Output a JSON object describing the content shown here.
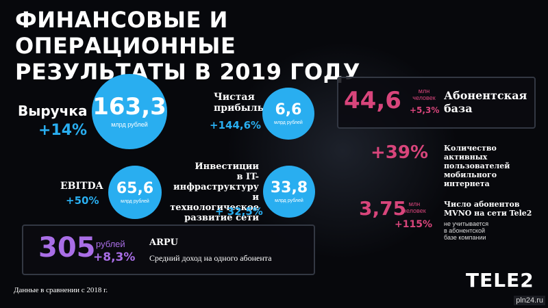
{
  "title_line1": "ФИНАНСОВЫЕ И ОПЕРАЦИОННЫЕ",
  "title_line2": "РЕЗУЛЬТАТЫ В 2019 ГОДУ",
  "revenue": {
    "label": "Выручка",
    "change": "+14%",
    "value": "163,3",
    "unit": "млрд рублей"
  },
  "net_profit": {
    "label_line1": "Чистая",
    "label_line2": "прибыль",
    "change": "+144,6%",
    "value": "6,6",
    "unit": "млрд рублей"
  },
  "ebitda": {
    "label": "EBITDA",
    "change": "+50%",
    "value": "65,6",
    "unit": "млрд рублей"
  },
  "investments": {
    "label_line1": "Инвестиции",
    "label_line2": "в IT-инфраструктуру",
    "label_line3": "и технологическое",
    "label_line4": "развитие сети",
    "change": "+ 32,5%",
    "value": "33,8",
    "unit": "млрд рублей"
  },
  "arpu": {
    "value": "305",
    "unit": "рублей",
    "change": "+8,3%",
    "label": "ARPU",
    "description": "Средний доход на одного абонента"
  },
  "subscribers": {
    "value": "44,6",
    "unit_line1": "млн",
    "unit_line2": "человек",
    "change": "+5,3%",
    "label_line1": "Абонентская",
    "label_line2": "база"
  },
  "mobile_internet": {
    "change": "+39%",
    "label_line1": "Количество",
    "label_line2": "активных",
    "label_line3": "пользователей",
    "label_line4": "мобильного",
    "label_line5": "интернета"
  },
  "mvno": {
    "value": "3,75",
    "unit_line1": "млн",
    "unit_line2": "человек",
    "change": "+115%",
    "label_line1": "Число абонентов",
    "label_line2": "MVNO на сети Tele2",
    "note_line1": "не учитывается",
    "note_line2": "в абонентской",
    "note_line3": "базе компании"
  },
  "footnote": "Данные в сравнении с 2018 г.",
  "logo": "TELE2",
  "watermark": "pln24.ru",
  "colors": {
    "blue": "#29aef0",
    "pink": "#d8457b",
    "violet": "#a96ee6",
    "background": "#07080c"
  }
}
